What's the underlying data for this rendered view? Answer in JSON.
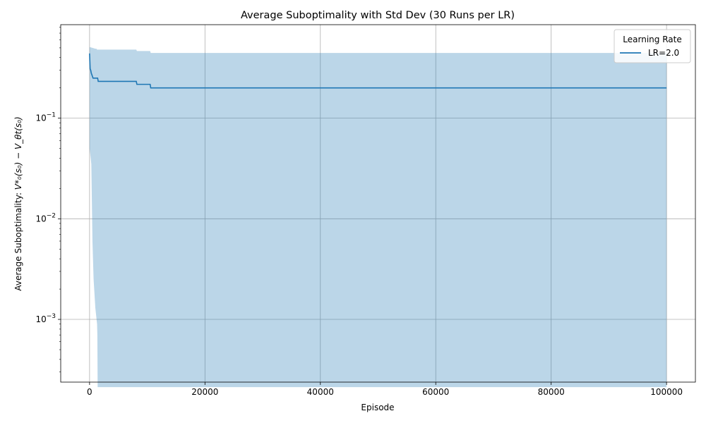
{
  "chart_data": {
    "type": "line",
    "title": "Average Suboptimality with Std Dev (30 Runs per LR)",
    "xlabel": "Episode",
    "ylabel_prefix": "Average Suboptimality: ",
    "ylabel_math": "V*₀(s₀) − V_θt(s₀)",
    "yscale": "log",
    "grid": true,
    "xlim": [
      -5000,
      105000
    ],
    "ylim": [
      0.000238,
      0.85
    ],
    "x_ticks": [
      0,
      20000,
      40000,
      60000,
      80000,
      100000
    ],
    "x_tick_labels": [
      "0",
      "20000",
      "40000",
      "60000",
      "80000",
      "100000"
    ],
    "y_ticks": [
      0.001,
      0.01,
      0.1
    ],
    "y_tick_labels": [
      {
        "base": "10",
        "exp": "−3"
      },
      {
        "base": "10",
        "exp": "−2"
      },
      {
        "base": "10",
        "exp": "−1"
      }
    ],
    "legend": {
      "title": "Learning Rate",
      "position": "top-right"
    },
    "series": [
      {
        "name": "LR=2.0",
        "color": "#1f77b4",
        "fill_color": "#1f77b4",
        "fill_opacity": 0.3,
        "mean": [
          [
            0,
            0.44
          ],
          [
            100,
            0.31
          ],
          [
            200,
            0.3
          ],
          [
            300,
            0.28
          ],
          [
            400,
            0.27
          ],
          [
            600,
            0.25
          ],
          [
            1400,
            0.25
          ],
          [
            1500,
            0.232
          ],
          [
            8100,
            0.232
          ],
          [
            8200,
            0.217
          ],
          [
            10500,
            0.217
          ],
          [
            10600,
            0.2
          ],
          [
            100000,
            0.2
          ]
        ],
        "upper": [
          [
            0,
            0.51
          ],
          [
            500,
            0.5
          ],
          [
            1000,
            0.49
          ],
          [
            1200,
            0.49
          ],
          [
            1300,
            0.48
          ],
          [
            8100,
            0.48
          ],
          [
            8200,
            0.465
          ],
          [
            10500,
            0.465
          ],
          [
            10600,
            0.445
          ],
          [
            100000,
            0.445
          ]
        ],
        "lower": [
          [
            0,
            0.05
          ],
          [
            100,
            0.045
          ],
          [
            200,
            0.04
          ],
          [
            300,
            0.035
          ],
          [
            400,
            0.015
          ],
          [
            500,
            0.006
          ],
          [
            700,
            0.0025
          ],
          [
            1000,
            0.0013
          ],
          [
            1300,
            0.0009
          ],
          [
            1350,
            0.0007
          ],
          [
            1400,
            0.0002
          ],
          [
            100000,
            0.0002
          ]
        ]
      }
    ]
  }
}
